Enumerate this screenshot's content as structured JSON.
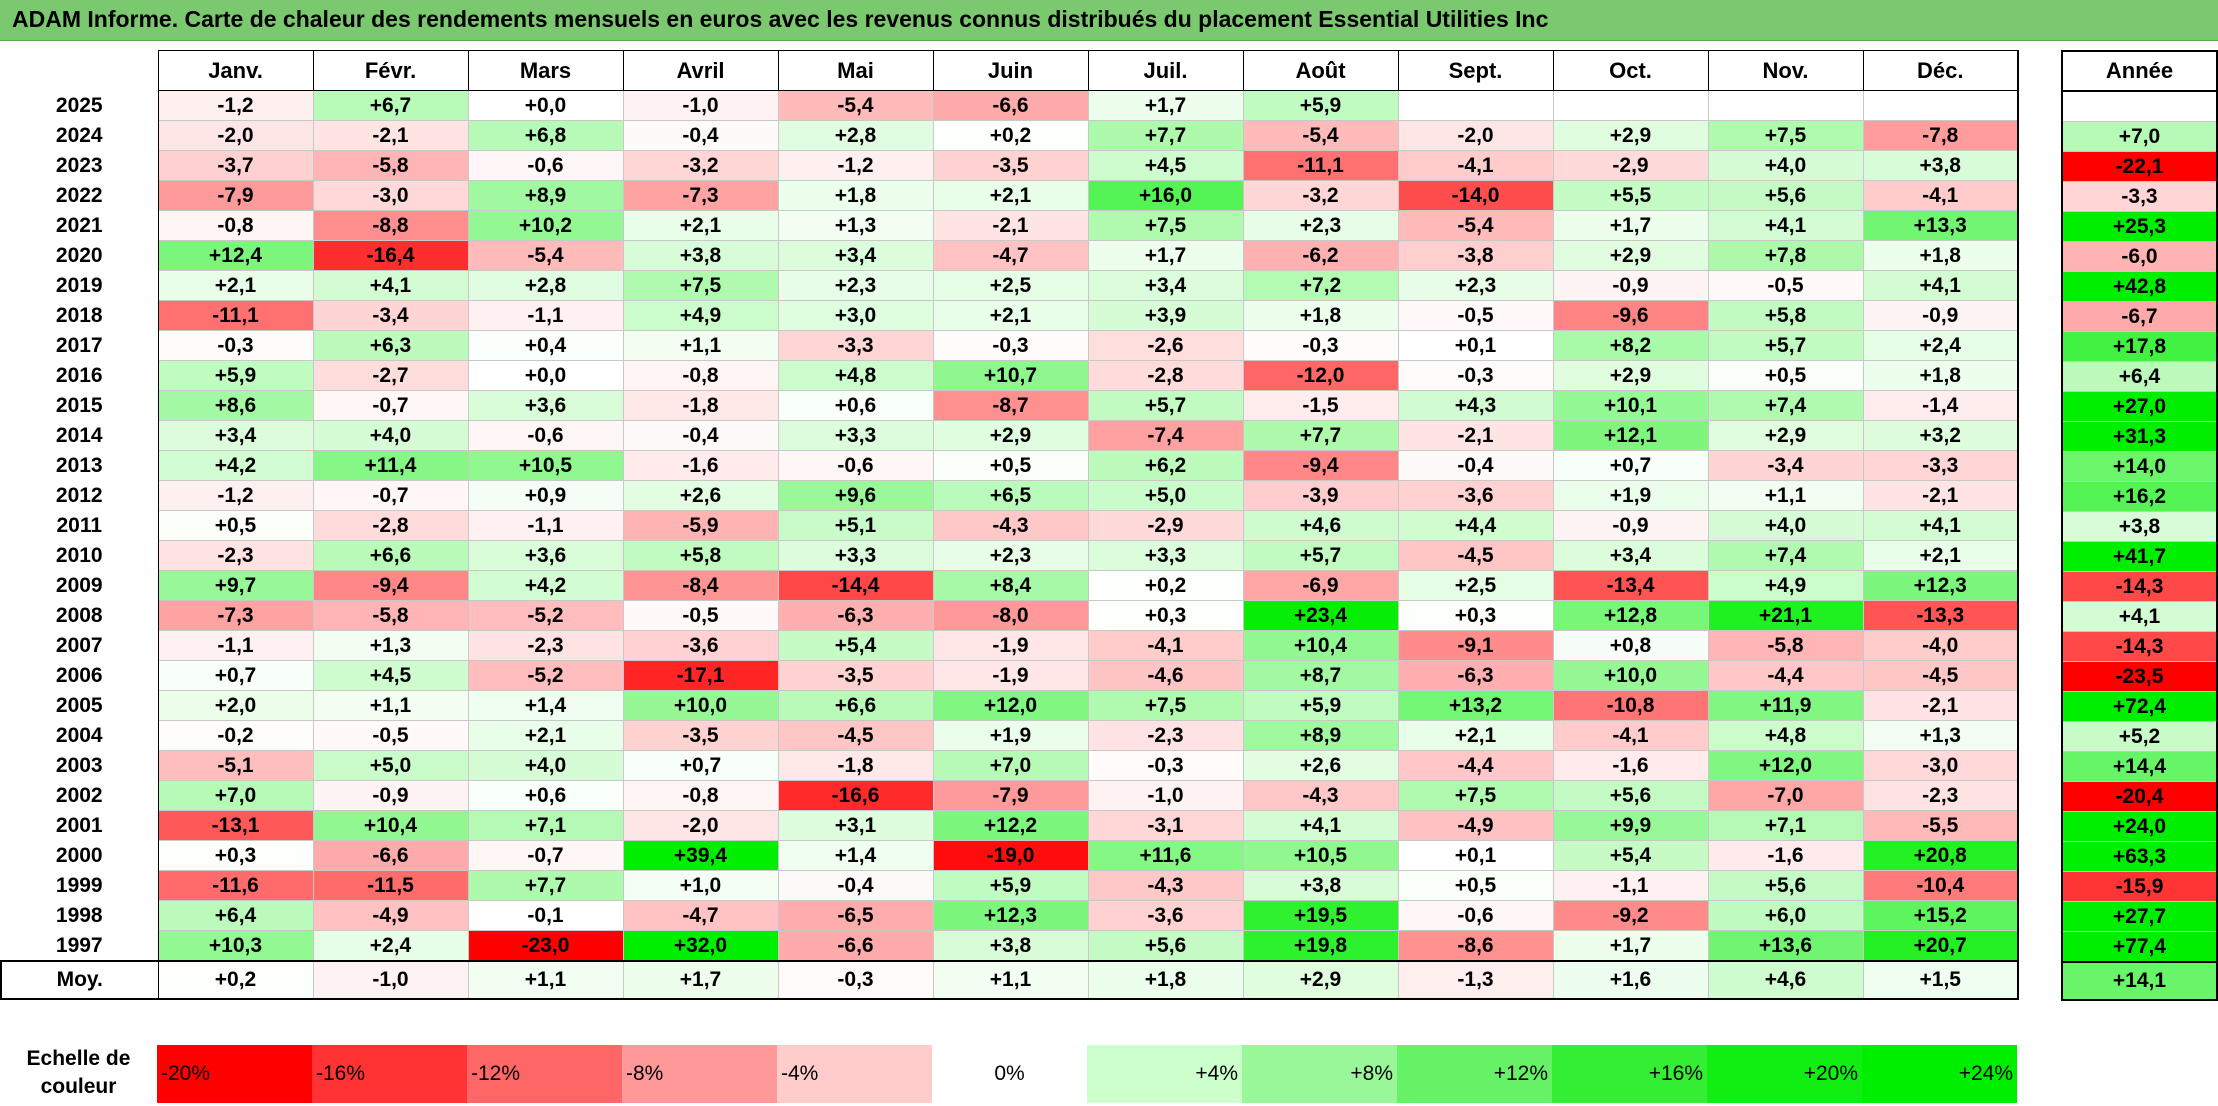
{
  "title": "ADAM Informe. Carte de chaleur des rendements mensuels en euros avec les revenus connus distribués du placement Essential Utilities Inc",
  "chart_data": {
    "type": "heatmap",
    "title": "ADAM Informe. Carte de chaleur des rendements mensuels en euros avec les revenus connus distribués du placement Essential Utilities Inc",
    "months": [
      "Janv.",
      "Févr.",
      "Mars",
      "Avril",
      "Mai",
      "Juin",
      "Juil.",
      "Août",
      "Sept.",
      "Oct.",
      "Nov.",
      "Déc."
    ],
    "annual_header": "Année",
    "rows": [
      {
        "year": "2025",
        "values": [
          "-1,2",
          "+6,7",
          "+0,0",
          "-1,0",
          "-5,4",
          "-6,6",
          "+1,7",
          "+5,9",
          "",
          "",
          "",
          ""
        ],
        "annual": ""
      },
      {
        "year": "2024",
        "values": [
          "-2,0",
          "-2,1",
          "+6,8",
          "-0,4",
          "+2,8",
          "+0,2",
          "+7,7",
          "-5,4",
          "-2,0",
          "+2,9",
          "+7,5",
          "-7,8"
        ],
        "annual": "+7,0"
      },
      {
        "year": "2023",
        "values": [
          "-3,7",
          "-5,8",
          "-0,6",
          "-3,2",
          "-1,2",
          "-3,5",
          "+4,5",
          "-11,1",
          "-4,1",
          "-2,9",
          "+4,0",
          "+3,8"
        ],
        "annual": "-22,1"
      },
      {
        "year": "2022",
        "values": [
          "-7,9",
          "-3,0",
          "+8,9",
          "-7,3",
          "+1,8",
          "+2,1",
          "+16,0",
          "-3,2",
          "-14,0",
          "+5,5",
          "+5,6",
          "-4,1"
        ],
        "annual": "-3,3"
      },
      {
        "year": "2021",
        "values": [
          "-0,8",
          "-8,8",
          "+10,2",
          "+2,1",
          "+1,3",
          "-2,1",
          "+7,5",
          "+2,3",
          "-5,4",
          "+1,7",
          "+4,1",
          "+13,3"
        ],
        "annual": "+25,3"
      },
      {
        "year": "2020",
        "values": [
          "+12,4",
          "-16,4",
          "-5,4",
          "+3,8",
          "+3,4",
          "-4,7",
          "+1,7",
          "-6,2",
          "-3,8",
          "+2,9",
          "+7,8",
          "+1,8"
        ],
        "annual": "-6,0"
      },
      {
        "year": "2019",
        "values": [
          "+2,1",
          "+4,1",
          "+2,8",
          "+7,5",
          "+2,3",
          "+2,5",
          "+3,4",
          "+7,2",
          "+2,3",
          "-0,9",
          "-0,5",
          "+4,1"
        ],
        "annual": "+42,8"
      },
      {
        "year": "2018",
        "values": [
          "-11,1",
          "-3,4",
          "-1,1",
          "+4,9",
          "+3,0",
          "+2,1",
          "+3,9",
          "+1,8",
          "-0,5",
          "-9,6",
          "+5,8",
          "-0,9"
        ],
        "annual": "-6,7"
      },
      {
        "year": "2017",
        "values": [
          "-0,3",
          "+6,3",
          "+0,4",
          "+1,1",
          "-3,3",
          "-0,3",
          "-2,6",
          "-0,3",
          "+0,1",
          "+8,2",
          "+5,7",
          "+2,4"
        ],
        "annual": "+17,8"
      },
      {
        "year": "2016",
        "values": [
          "+5,9",
          "-2,7",
          "+0,0",
          "-0,8",
          "+4,8",
          "+10,7",
          "-2,8",
          "-12,0",
          "-0,3",
          "+2,9",
          "+0,5",
          "+1,8"
        ],
        "annual": "+6,4"
      },
      {
        "year": "2015",
        "values": [
          "+8,6",
          "-0,7",
          "+3,6",
          "-1,8",
          "+0,6",
          "-8,7",
          "+5,7",
          "-1,5",
          "+4,3",
          "+10,1",
          "+7,4",
          "-1,4"
        ],
        "annual": "+27,0"
      },
      {
        "year": "2014",
        "values": [
          "+3,4",
          "+4,0",
          "-0,6",
          "-0,4",
          "+3,3",
          "+2,9",
          "-7,4",
          "+7,7",
          "-2,1",
          "+12,1",
          "+2,9",
          "+3,2"
        ],
        "annual": "+31,3"
      },
      {
        "year": "2013",
        "values": [
          "+4,2",
          "+11,4",
          "+10,5",
          "-1,6",
          "-0,6",
          "+0,5",
          "+6,2",
          "-9,4",
          "-0,4",
          "+0,7",
          "-3,4",
          "-3,3"
        ],
        "annual": "+14,0"
      },
      {
        "year": "2012",
        "values": [
          "-1,2",
          "-0,7",
          "+0,9",
          "+2,6",
          "+9,6",
          "+6,5",
          "+5,0",
          "-3,9",
          "-3,6",
          "+1,9",
          "+1,1",
          "-2,1"
        ],
        "annual": "+16,2"
      },
      {
        "year": "2011",
        "values": [
          "+0,5",
          "-2,8",
          "-1,1",
          "-5,9",
          "+5,1",
          "-4,3",
          "-2,9",
          "+4,6",
          "+4,4",
          "-0,9",
          "+4,0",
          "+4,1"
        ],
        "annual": "+3,8"
      },
      {
        "year": "2010",
        "values": [
          "-2,3",
          "+6,6",
          "+3,6",
          "+5,8",
          "+3,3",
          "+2,3",
          "+3,3",
          "+5,7",
          "-4,5",
          "+3,4",
          "+7,4",
          "+2,1"
        ],
        "annual": "+41,7"
      },
      {
        "year": "2009",
        "values": [
          "+9,7",
          "-9,4",
          "+4,2",
          "-8,4",
          "-14,4",
          "+8,4",
          "+0,2",
          "-6,9",
          "+2,5",
          "-13,4",
          "+4,9",
          "+12,3"
        ],
        "annual": "-14,3"
      },
      {
        "year": "2008",
        "values": [
          "-7,3",
          "-5,8",
          "-5,2",
          "-0,5",
          "-6,3",
          "-8,0",
          "+0,3",
          "+23,4",
          "+0,3",
          "+12,8",
          "+21,1",
          "-13,3"
        ],
        "annual": "+4,1"
      },
      {
        "year": "2007",
        "values": [
          "-1,1",
          "+1,3",
          "-2,3",
          "-3,6",
          "+5,4",
          "-1,9",
          "-4,1",
          "+10,4",
          "-9,1",
          "+0,8",
          "-5,8",
          "-4,0"
        ],
        "annual": "-14,3"
      },
      {
        "year": "2006",
        "values": [
          "+0,7",
          "+4,5",
          "-5,2",
          "-17,1",
          "-3,5",
          "-1,9",
          "-4,6",
          "+8,7",
          "-6,3",
          "+10,0",
          "-4,4",
          "-4,5"
        ],
        "annual": "-23,5"
      },
      {
        "year": "2005",
        "values": [
          "+2,0",
          "+1,1",
          "+1,4",
          "+10,0",
          "+6,6",
          "+12,0",
          "+7,5",
          "+5,9",
          "+13,2",
          "-10,8",
          "+11,9",
          "-2,1"
        ],
        "annual": "+72,4"
      },
      {
        "year": "2004",
        "values": [
          "-0,2",
          "-0,5",
          "+2,1",
          "-3,5",
          "-4,5",
          "+1,9",
          "-2,3",
          "+8,9",
          "+2,1",
          "-4,1",
          "+4,8",
          "+1,3"
        ],
        "annual": "+5,2"
      },
      {
        "year": "2003",
        "values": [
          "-5,1",
          "+5,0",
          "+4,0",
          "+0,7",
          "-1,8",
          "+7,0",
          "-0,3",
          "+2,6",
          "-4,4",
          "-1,6",
          "+12,0",
          "-3,0"
        ],
        "annual": "+14,4"
      },
      {
        "year": "2002",
        "values": [
          "+7,0",
          "-0,9",
          "+0,6",
          "-0,8",
          "-16,6",
          "-7,9",
          "-1,0",
          "-4,3",
          "+7,5",
          "+5,6",
          "-7,0",
          "-2,3"
        ],
        "annual": "-20,4"
      },
      {
        "year": "2001",
        "values": [
          "-13,1",
          "+10,4",
          "+7,1",
          "-2,0",
          "+3,1",
          "+12,2",
          "-3,1",
          "+4,1",
          "-4,9",
          "+9,9",
          "+7,1",
          "-5,5"
        ],
        "annual": "+24,0"
      },
      {
        "year": "2000",
        "values": [
          "+0,3",
          "-6,6",
          "-0,7",
          "+39,4",
          "+1,4",
          "-19,0",
          "+11,6",
          "+10,5",
          "+0,1",
          "+5,4",
          "-1,6",
          "+20,8"
        ],
        "annual": "+63,3"
      },
      {
        "year": "1999",
        "values": [
          "-11,6",
          "-11,5",
          "+7,7",
          "+1,0",
          "-0,4",
          "+5,9",
          "-4,3",
          "+3,8",
          "+0,5",
          "-1,1",
          "+5,6",
          "-10,4"
        ],
        "annual": "-15,9"
      },
      {
        "year": "1998",
        "values": [
          "+6,4",
          "-4,9",
          "-0,1",
          "-4,7",
          "-6,5",
          "+12,3",
          "-3,6",
          "+19,5",
          "-0,6",
          "-9,2",
          "+6,0",
          "+15,2"
        ],
        "annual": "+27,7"
      },
      {
        "year": "1997",
        "values": [
          "+10,3",
          "+2,4",
          "-23,0",
          "+32,0",
          "-6,6",
          "+3,8",
          "+5,6",
          "+19,8",
          "-8,6",
          "+1,7",
          "+13,6",
          "+20,7"
        ],
        "annual": "+77,4"
      }
    ],
    "average": {
      "label": "Moy.",
      "values": [
        "+0,2",
        "-1,0",
        "+1,1",
        "+1,7",
        "-0,3",
        "+1,1",
        "+1,8",
        "+2,9",
        "-1,3",
        "+1,6",
        "+4,6",
        "+1,5"
      ],
      "annual": "+14,1"
    },
    "scale": {
      "label_line1": "Echelle de",
      "label_line2": "couleur",
      "steps": [
        "-20%",
        "-16%",
        "-12%",
        "-8%",
        "-4%",
        "0%",
        "+4%",
        "+8%",
        "+12%",
        "+16%",
        "+20%",
        "+24%"
      ]
    },
    "colors": {
      "negative_max": "#ff0000",
      "neutral": "#ffffff",
      "positive_max": "#00ee00",
      "title_bg": "#7bc96f"
    }
  }
}
